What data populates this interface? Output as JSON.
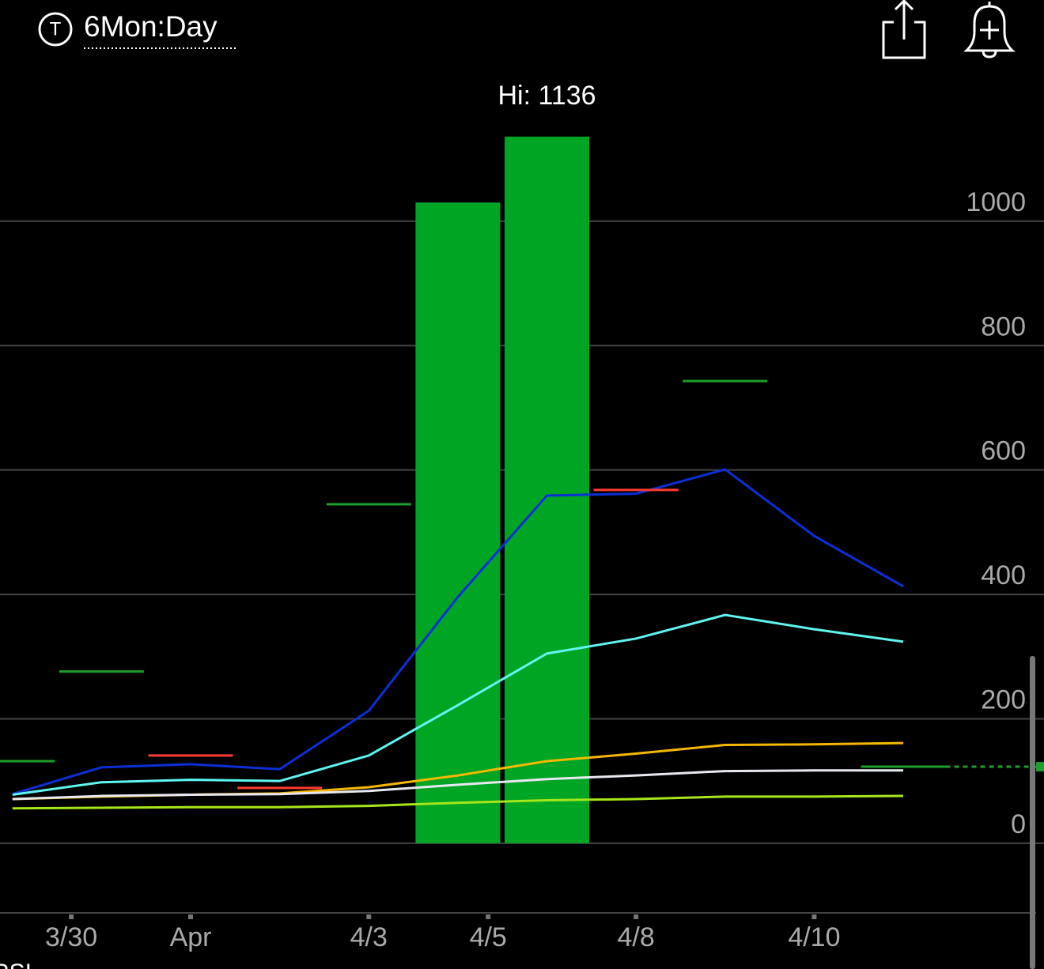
{
  "header": {
    "icon_letter": "T",
    "timeframe": "6Mon:Day"
  },
  "chart_data": {
    "type": "combo",
    "annotation": "Hi: 1136",
    "x": [
      0,
      1,
      2,
      3,
      4,
      5,
      6,
      7,
      8,
      9,
      10
    ],
    "xlim": [
      -0.14,
      11.58
    ],
    "xticks": [
      {
        "value": 0.66,
        "label": "3/30"
      },
      {
        "value": 2,
        "label": "Apr"
      },
      {
        "value": 4,
        "label": "4/3"
      },
      {
        "value": 5.34,
        "label": "4/5"
      },
      {
        "value": 7,
        "label": "4/8"
      },
      {
        "value": 9,
        "label": "4/10"
      }
    ],
    "ylim": [
      -112,
      1254
    ],
    "yticks": [
      0,
      200,
      400,
      600,
      800,
      1000
    ],
    "grid": true,
    "series": [
      {
        "type": "bar",
        "color": "#00a524",
        "values": [
          null,
          null,
          null,
          null,
          null,
          1030,
          1136,
          null,
          null,
          null,
          null
        ]
      },
      {
        "type": "line",
        "color": "#0a2fd6",
        "values": [
          79,
          122,
          127,
          119,
          213,
          396,
          559,
          562,
          601,
          494,
          413
        ]
      },
      {
        "type": "line",
        "color": "#5ff5f0",
        "values": [
          78,
          98,
          102,
          100,
          141,
          222,
          305,
          329,
          367,
          344,
          324
        ]
      },
      {
        "type": "line",
        "color": "#f5b800",
        "values": [
          71,
          75,
          78,
          80,
          90,
          109,
          132,
          144,
          158,
          159,
          161
        ]
      },
      {
        "type": "line",
        "color": "#e8e8f0",
        "values": [
          71,
          76,
          78,
          79,
          84,
          94,
          103,
          109,
          116,
          117,
          117
        ]
      },
      {
        "type": "line",
        "color": "#a6e61b",
        "values": [
          56,
          57,
          58,
          58,
          60,
          65,
          69,
          71,
          75,
          75,
          76
        ]
      },
      {
        "type": "marker",
        "color": "#1e9e2a",
        "values": [
          132,
          276,
          null,
          null,
          545,
          null,
          null,
          null,
          743,
          null,
          123
        ]
      },
      {
        "type": "marker",
        "color": "#ff3b30",
        "values": [
          null,
          null,
          141,
          89,
          null,
          null,
          null,
          568,
          null,
          null,
          null
        ]
      }
    ]
  }
}
